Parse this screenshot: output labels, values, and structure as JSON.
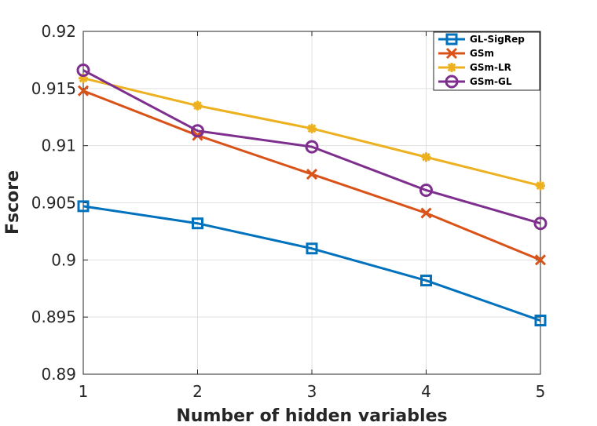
{
  "chart_data": {
    "type": "line",
    "xlabel": "Number of hidden variables",
    "ylabel": "Fscore",
    "x": [
      1,
      2,
      3,
      4,
      5
    ],
    "xlim": [
      1,
      5
    ],
    "ylim": [
      0.89,
      0.92
    ],
    "xticks": [
      1,
      2,
      3,
      4,
      5
    ],
    "yticks": [
      0.89,
      0.895,
      0.9,
      0.905,
      0.91,
      0.915,
      0.92
    ],
    "xtick_labels": [
      "1",
      "2",
      "3",
      "4",
      "5"
    ],
    "ytick_labels": [
      "0.89",
      "0.895",
      "0.9",
      "0.905",
      "0.91",
      "0.915",
      "0.92"
    ],
    "grid": true,
    "legend_position": "top-right",
    "series": [
      {
        "name": "GL-SigRep",
        "color": "#0072BD",
        "marker": "square",
        "values": [
          0.9047,
          0.9032,
          0.901,
          0.8982,
          0.8947
        ]
      },
      {
        "name": "GSm",
        "color": "#D95319",
        "marker": "x",
        "values": [
          0.9148,
          0.9109,
          0.9075,
          0.9041,
          0.9
        ]
      },
      {
        "name": "GSm-LR",
        "color": "#EDB120",
        "marker": "star",
        "values": [
          0.9159,
          0.9135,
          0.9115,
          0.909,
          0.9065
        ]
      },
      {
        "name": "GSm-GL",
        "color": "#7E2F8E",
        "marker": "circle",
        "values": [
          0.9166,
          0.9113,
          0.9099,
          0.9061,
          0.9032
        ]
      }
    ]
  }
}
